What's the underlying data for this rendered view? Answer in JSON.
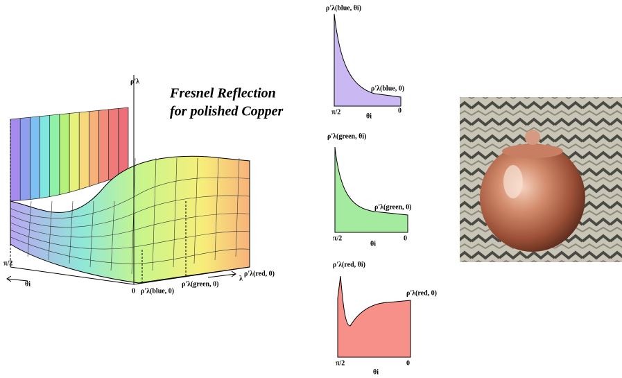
{
  "title": {
    "line1": "Fresnel Reflection",
    "line2": "for polished Copper"
  },
  "surface": {
    "z_label": "ρ'λ",
    "theta_end": "π/2",
    "theta_label": "θi",
    "origin": "0",
    "blue_label": "ρ'λ(blue, 0)",
    "green_label": "ρ'λ(green, 0)",
    "lambda_label": "λ",
    "red_label": "ρ'λ(red, 0)"
  },
  "panels": [
    {
      "top_label": "ρ'λ(blue, θi)",
      "end_label": "ρ'λ(blue, 0)",
      "left_tick": "π/2",
      "axis_label": "θi",
      "right_tick": "0"
    },
    {
      "top_label": "ρ'λ(green, θi)",
      "end_label": "ρ'λ(green, 0)",
      "left_tick": "π/2",
      "axis_label": "θi",
      "right_tick": "0"
    },
    {
      "top_label": "ρ'λ(red, θi)",
      "end_label": "ρ'λ(red, 0)",
      "left_tick": "π/2",
      "axis_label": "θi",
      "right_tick": "0"
    }
  ]
}
